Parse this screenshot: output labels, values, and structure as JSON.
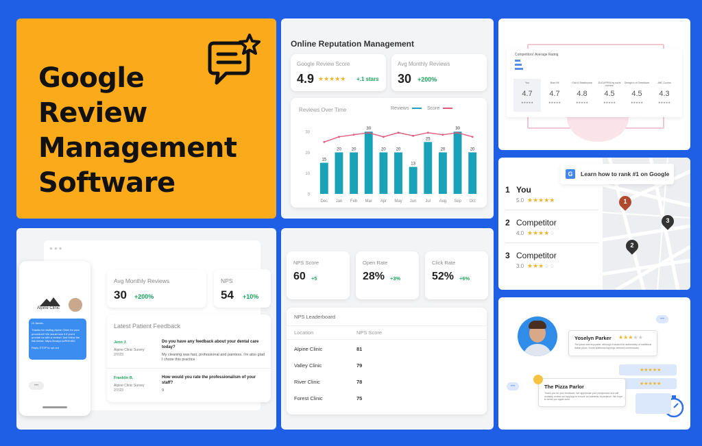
{
  "hero": {
    "title_lines": [
      "Google",
      "Review",
      "Management",
      "Software"
    ]
  },
  "reputation": {
    "title": "Online Reputation Management",
    "google_score": {
      "label": "Google Review Score",
      "value": "4.9",
      "stars": "★★★★★",
      "delta": "+.1 stars"
    },
    "avg_monthly": {
      "label": "Avg Monthly Reviews",
      "value": "30",
      "delta": "+200%"
    },
    "chart_title": "Reviews Over Time",
    "legend_reviews": "Reviews",
    "legend_score": "Score",
    "colors": {
      "bar": "#1aa3b8",
      "line": "#e05a7a"
    }
  },
  "chart_data": {
    "type": "bar",
    "title": "Reviews Over Time",
    "categories": [
      "Dec",
      "Jan",
      "Feb",
      "Mar",
      "Apr",
      "May",
      "Jun",
      "Jul",
      "Aug",
      "Sep",
      "Oct"
    ],
    "series": [
      {
        "name": "Reviews",
        "values": [
          15,
          20,
          20,
          30,
          20,
          20,
          13,
          25,
          20,
          30,
          20
        ]
      },
      {
        "name": "Score",
        "values": [
          25,
          27.5,
          28.5,
          29.5,
          27.5,
          29.5,
          28,
          29.5,
          28.5,
          29.5,
          27.5
        ]
      }
    ],
    "data_labels": [
      "15",
      "20",
      "20",
      "30",
      "20",
      "20",
      "13",
      "25",
      "20",
      "30",
      "20"
    ],
    "yticks": [
      "0",
      "10",
      "20",
      "30"
    ],
    "ylim": [
      0,
      35
    ]
  },
  "competitors": {
    "title": "Competitors' Average Rating",
    "names": [
      "You",
      "Blue Hill",
      "Club A Steakhouse",
      "DUCAPPINI by sushi movers",
      "Georgio's of Greektown",
      "ABC Cucina"
    ],
    "ratings": [
      "4.7",
      "4.7",
      "4.8",
      "4.5",
      "4.5",
      "4.3"
    ]
  },
  "rank": {
    "banner": "Learn how to rank #1 on Google",
    "g": "G",
    "items": [
      {
        "num": "1",
        "name": "You",
        "score": "5.0",
        "stars": "★★★★★",
        "off": ""
      },
      {
        "num": "2",
        "name": "Competitor",
        "score": "4.0",
        "stars": "★★★★",
        "off": "☆"
      },
      {
        "num": "3",
        "name": "Competitor",
        "score": "3.0",
        "stars": "★★★",
        "off": "☆☆"
      }
    ],
    "pins": [
      "1",
      "2",
      "3"
    ]
  },
  "feedback": {
    "clinic": "Alpine Clinic",
    "sms": "Hi James,\n\nThanks for visiting Alpine Clinic for your procedure! We would love it if you'd provide us with a review! Just follow the link below: https://evalyx.io/RHK452\n\nReply STOP to opt out",
    "avg_monthly": {
      "label": "Avg Monthly Reviews",
      "value": "30",
      "delta": "+200%"
    },
    "nps": {
      "label": "NPS",
      "value": "54",
      "delta": "+10%"
    },
    "latest_title": "Latest Patient Feedback",
    "entries": [
      {
        "name": "Jenn J.",
        "survey": "Alpine Clinic Survey",
        "date": "2/7/23",
        "question": "Do you have any feedback about your dental care today?",
        "answer": "My cleaning was fast, professional and painless. I'm also glad I chose this practice"
      },
      {
        "name": "Franklin B.",
        "survey": "Alpine Clinic Survey",
        "date": "2/7/23",
        "question": "How would you rate the professionalism of your staff?",
        "answer": "9"
      }
    ]
  },
  "nps_panel": {
    "stats": [
      {
        "label": "NPS Score",
        "value": "60",
        "delta": "+5"
      },
      {
        "label": "Open Rate",
        "value": "28%",
        "delta": "+3%"
      },
      {
        "label": "Click Rate",
        "value": "52%",
        "delta": "+6%"
      }
    ],
    "leaderboard_title": "NPS Leaderboard",
    "col_location": "Location",
    "col_score": "NPS Score",
    "rows": [
      {
        "location": "Alpine Clinic",
        "score": "81"
      },
      {
        "location": "Valley Clinic",
        "score": "79"
      },
      {
        "location": "River Clinic",
        "score": "78"
      },
      {
        "location": "Forest Clinic",
        "score": "75"
      }
    ]
  },
  "pizza": {
    "reviewer": "Yoselyn Parker",
    "review_text": "The pizza was enjoyable, although it lacked the authenticity of traditional Italian pizza. Some additional toppings seemed unnecessary.",
    "business": "The Pizza Parlor",
    "reply_text": "Thank you for your feedback. We appreciate your perspective and will certainly review our toppings to ensure an authentic experience. We hope to serve you again soon."
  }
}
